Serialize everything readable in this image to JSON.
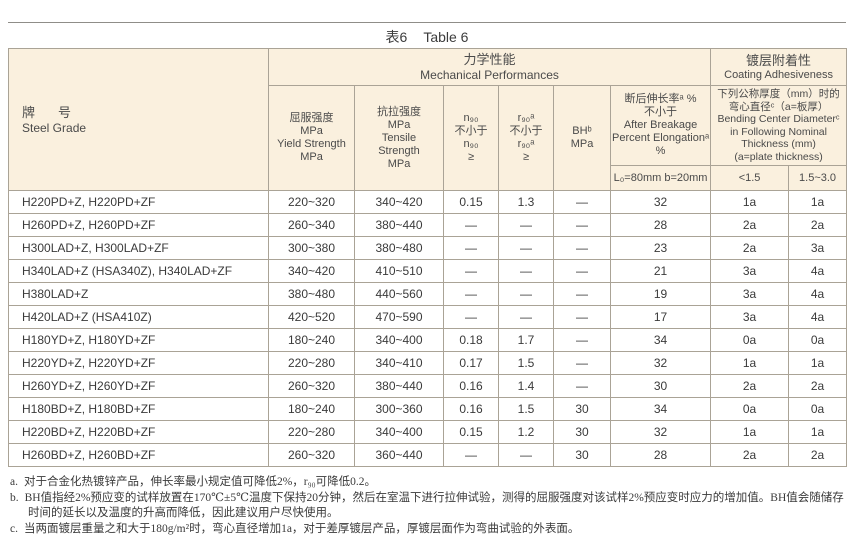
{
  "title": {
    "zh": "表6",
    "en": "Table 6"
  },
  "colors": {
    "header_bg": "#FAF0DE",
    "border": "#AAA396",
    "text": "#3A3A3A"
  },
  "table": {
    "group_headers": {
      "steel_grade": {
        "zh": "牌　号",
        "en": "Steel Grade"
      },
      "mechanical": {
        "zh": "力学性能",
        "en": "Mechanical Performances"
      },
      "coating": {
        "zh": "镀层附着性",
        "en": "Coating Adhesiveness"
      }
    },
    "columns": {
      "yield": {
        "lines": [
          "屈服强度",
          "MPa",
          "Yield Strength",
          "MPa"
        ]
      },
      "tensile": {
        "lines": [
          "抗拉强度",
          "MPa",
          "Tensile",
          "Strength",
          "MPa"
        ]
      },
      "n90": {
        "lines": [
          "n₉₀",
          "不小于",
          "n₉₀",
          "≥"
        ]
      },
      "r90": {
        "lines": [
          "r₉₀ᵃ",
          "不小于",
          "r₉₀ᵃ",
          "≥"
        ]
      },
      "bh": {
        "lines": [
          "BHᵇ",
          "MPa"
        ]
      },
      "elongation": {
        "lines": [
          "断后伸长率ᵃ %",
          "不小于",
          "After Breakage",
          "Percent Elongationᵃ",
          "%"
        ],
        "gauge": "L₀=80mm b=20mm"
      },
      "bend": {
        "lines": [
          "下列公称厚度（mm）时的",
          "弯心直径ᶜ（a=板厚）",
          "Bending Center Diameterᶜ",
          "in Following Nominal",
          "Thickness (mm)",
          "(a=plate thickness)"
        ],
        "sub": [
          "<1.5",
          "1.5~3.0"
        ]
      }
    },
    "rows": [
      [
        "H220PD+Z, H220PD+ZF",
        "220~320",
        "340~420",
        "0.15",
        "1.3",
        "—",
        "32",
        "1a",
        "1a"
      ],
      [
        "H260PD+Z, H260PD+ZF",
        "260~340",
        "380~440",
        "—",
        "—",
        "—",
        "28",
        "2a",
        "2a"
      ],
      [
        "H300LAD+Z, H300LAD+ZF",
        "300~380",
        "380~480",
        "—",
        "—",
        "—",
        "23",
        "2a",
        "3a"
      ],
      [
        "H340LAD+Z (HSA340Z), H340LAD+ZF",
        "340~420",
        "410~510",
        "—",
        "—",
        "—",
        "21",
        "3a",
        "4a"
      ],
      [
        "H380LAD+Z",
        "380~480",
        "440~560",
        "—",
        "—",
        "—",
        "19",
        "3a",
        "4a"
      ],
      [
        "H420LAD+Z (HSA410Z)",
        "420~520",
        "470~590",
        "—",
        "—",
        "—",
        "17",
        "3a",
        "4a"
      ],
      [
        "H180YD+Z, H180YD+ZF",
        "180~240",
        "340~400",
        "0.18",
        "1.7",
        "—",
        "34",
        "0a",
        "0a"
      ],
      [
        "H220YD+Z, H220YD+ZF",
        "220~280",
        "340~410",
        "0.17",
        "1.5",
        "—",
        "32",
        "1a",
        "1a"
      ],
      [
        "H260YD+Z, H260YD+ZF",
        "260~320",
        "380~440",
        "0.16",
        "1.4",
        "—",
        "30",
        "2a",
        "2a"
      ],
      [
        "H180BD+Z, H180BD+ZF",
        "180~240",
        "300~360",
        "0.16",
        "1.5",
        "30",
        "34",
        "0a",
        "0a"
      ],
      [
        "H220BD+Z, H220BD+ZF",
        "220~280",
        "340~400",
        "0.15",
        "1.2",
        "30",
        "32",
        "1a",
        "1a"
      ],
      [
        "H260BD+Z, H260BD+ZF",
        "260~320",
        "360~440",
        "—",
        "—",
        "30",
        "28",
        "2a",
        "2a"
      ]
    ]
  },
  "footnotes": [
    {
      "marker": "a.",
      "text": "对于合金化热镀锌产品，伸长率最小规定值可降低2%，r₉₀可降低0.2。"
    },
    {
      "marker": "b.",
      "text": "BH值指经2%预应变的试样放置在170℃±5℃温度下保持20分钟，然后在室温下进行拉伸试验，测得的屈服强度对该试样2%预应变时应力的增加值。BH值会随储存时间的延长以及温度的升高而降低，因此建议用户尽快使用。"
    },
    {
      "marker": "c.",
      "text": "当两面镀层重量之和大于180g/m²时，弯心直径增加1a，对于差厚镀层产品，厚镀层面作为弯曲试验的外表面。"
    }
  ]
}
